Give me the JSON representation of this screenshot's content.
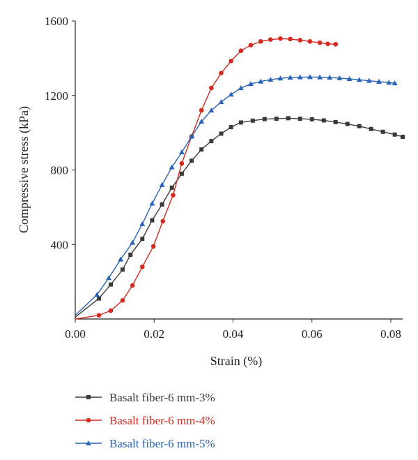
{
  "chart_data": {
    "type": "line",
    "xlabel": "Strain (%)",
    "ylabel": "Compressive stress (kPa)",
    "xlim": [
      0,
      0.083
    ],
    "ylim": [
      0,
      1600
    ],
    "xticks": [
      "0.00",
      "0.02",
      "0.04",
      "0.06",
      "0.08"
    ],
    "xtick_values": [
      0,
      0.02,
      0.04,
      0.06,
      0.08
    ],
    "yticks": [
      "400",
      "800",
      "1200",
      "1600"
    ],
    "ytick_values": [
      400,
      800,
      1200,
      1600
    ],
    "grid": false,
    "legend_position": "bottom",
    "series": [
      {
        "name": "Basalt fiber-6 mm-3%",
        "color": "#3a3a3a",
        "marker": "square",
        "x": [
          0.0,
          0.006,
          0.009,
          0.012,
          0.014,
          0.017,
          0.0195,
          0.022,
          0.0245,
          0.027,
          0.0295,
          0.032,
          0.0345,
          0.037,
          0.0395,
          0.042,
          0.045,
          0.048,
          0.051,
          0.054,
          0.057,
          0.06,
          0.063,
          0.066,
          0.069,
          0.072,
          0.075,
          0.078,
          0.081,
          0.083
        ],
        "y": [
          10,
          110,
          185,
          265,
          345,
          430,
          530,
          615,
          705,
          780,
          850,
          910,
          955,
          995,
          1030,
          1055,
          1065,
          1073,
          1075,
          1078,
          1075,
          1072,
          1066,
          1057,
          1047,
          1035,
          1020,
          1005,
          990,
          978
        ]
      },
      {
        "name": "Basalt fiber-6 mm-4%",
        "color": "#d42a1f",
        "marker": "circle",
        "x": [
          0.0,
          0.006,
          0.009,
          0.012,
          0.0145,
          0.017,
          0.0198,
          0.0222,
          0.0248,
          0.027,
          0.0295,
          0.032,
          0.0345,
          0.037,
          0.0395,
          0.042,
          0.0445,
          0.047,
          0.0495,
          0.052,
          0.0545,
          0.057,
          0.0595,
          0.062,
          0.064,
          0.066
        ],
        "y": [
          0,
          20,
          45,
          100,
          180,
          280,
          390,
          525,
          665,
          835,
          980,
          1120,
          1240,
          1320,
          1385,
          1440,
          1470,
          1490,
          1500,
          1505,
          1503,
          1497,
          1490,
          1483,
          1477,
          1475
        ]
      },
      {
        "name": "Basalt fiber-6 mm-5%",
        "color": "#2a64b8",
        "marker": "triangle",
        "x": [
          0.0,
          0.0055,
          0.0085,
          0.0115,
          0.0145,
          0.017,
          0.0195,
          0.022,
          0.0245,
          0.027,
          0.0295,
          0.032,
          0.0345,
          0.037,
          0.0395,
          0.042,
          0.0445,
          0.047,
          0.0495,
          0.052,
          0.0545,
          0.057,
          0.0595,
          0.062,
          0.0645,
          0.067,
          0.0695,
          0.072,
          0.0745,
          0.077,
          0.0795,
          0.081
        ],
        "y": [
          20,
          130,
          220,
          320,
          410,
          510,
          620,
          720,
          815,
          895,
          980,
          1060,
          1120,
          1165,
          1205,
          1240,
          1262,
          1275,
          1285,
          1292,
          1296,
          1298,
          1299,
          1298,
          1296,
          1293,
          1289,
          1284,
          1279,
          1274,
          1269,
          1266
        ]
      }
    ]
  }
}
